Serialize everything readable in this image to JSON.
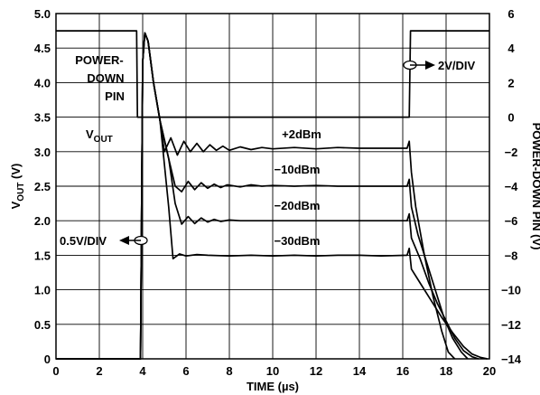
{
  "chart_data": {
    "type": "line",
    "xlabel": "TIME (µs)",
    "ylabel_left": {
      "main": "V",
      "sub": "OUT",
      "suffix": " (V)"
    },
    "ylabel_right": "POWER-DOWN PIN (V)",
    "xlim": [
      0,
      20
    ],
    "ylim_left": [
      0,
      5
    ],
    "ylim_right": [
      -14,
      6
    ],
    "x_ticks": [
      "0",
      "2",
      "4",
      "6",
      "8",
      "10",
      "12",
      "14",
      "16",
      "18",
      "20"
    ],
    "y_left_ticks": [
      "0",
      "0.5",
      "1.0",
      "1.5",
      "2.0",
      "2.5",
      "3.0",
      "3.5",
      "4.0",
      "4.5",
      "5.0"
    ],
    "y_right_ticks": [
      "−14",
      "−12",
      "−10",
      "−8",
      "−6",
      "−4",
      "−2",
      "0",
      "2",
      "4",
      "6"
    ],
    "grid": true,
    "annotations": {
      "power_down_pin": [
        "POWER-",
        "DOWN",
        "PIN"
      ],
      "vout": {
        "main": "V",
        "sub": "OUT"
      },
      "scale_right": "2V/DIV",
      "scale_left": "0.5V/DIV"
    },
    "series": [
      {
        "name": "POWER-DOWN PIN",
        "axis": "right",
        "x": [
          0,
          3.72,
          3.76,
          16.3,
          16.36,
          20
        ],
        "y": [
          5,
          5,
          0,
          0,
          5,
          5
        ]
      },
      {
        "name": "+2dBm",
        "axis": "left",
        "label": "+2dBm",
        "x": [
          0,
          3.9,
          4.0,
          4.1,
          4.25,
          4.5,
          4.8,
          5.0,
          5.3,
          5.6,
          5.9,
          6.2,
          6.5,
          6.8,
          7.1,
          7.4,
          7.7,
          8.0,
          8.5,
          9.0,
          9.5,
          10,
          11,
          12,
          13,
          14,
          15,
          16.2,
          16.3,
          16.4,
          16.6,
          17.0,
          17.4,
          17.8,
          18.1,
          18.4
        ],
        "y": [
          0,
          0,
          4.3,
          4.72,
          4.6,
          4.0,
          3.45,
          3.0,
          3.2,
          2.95,
          3.15,
          3.0,
          3.12,
          3.0,
          3.1,
          3.02,
          3.08,
          3.02,
          3.07,
          3.03,
          3.06,
          3.04,
          3.06,
          3.04,
          3.06,
          3.05,
          3.05,
          3.05,
          3.15,
          2.7,
          2.2,
          1.5,
          0.9,
          0.4,
          0.1,
          0
        ]
      },
      {
        "name": "−10dBm",
        "axis": "left",
        "label": "−10dBm",
        "x": [
          0,
          3.9,
          4.0,
          4.1,
          4.25,
          4.5,
          4.8,
          5.2,
          5.5,
          5.8,
          6.1,
          6.4,
          6.7,
          7.0,
          7.3,
          7.6,
          7.9,
          8.5,
          9.0,
          9.5,
          10,
          11,
          12,
          13,
          14,
          15,
          16.2,
          16.3,
          16.4,
          16.7,
          17.1,
          17.5,
          17.9,
          18.3,
          18.7,
          19.0
        ],
        "y": [
          0,
          0,
          4.3,
          4.72,
          4.6,
          4.0,
          3.45,
          2.9,
          2.5,
          2.42,
          2.57,
          2.45,
          2.55,
          2.47,
          2.53,
          2.48,
          2.52,
          2.49,
          2.52,
          2.5,
          2.51,
          2.5,
          2.51,
          2.5,
          2.5,
          2.5,
          2.5,
          2.6,
          2.2,
          1.8,
          1.4,
          1.0,
          0.6,
          0.3,
          0.1,
          0
        ]
      },
      {
        "name": "−20dBm",
        "axis": "left",
        "label": "−20dBm",
        "x": [
          0,
          3.9,
          4.0,
          4.1,
          4.25,
          4.5,
          4.8,
          5.2,
          5.5,
          5.8,
          6.1,
          6.4,
          6.7,
          7.0,
          7.3,
          7.6,
          8.0,
          8.5,
          9.0,
          10,
          11,
          12,
          13,
          14,
          15,
          16.2,
          16.3,
          16.4,
          16.8,
          17.2,
          17.6,
          18.0,
          18.4,
          18.8,
          19.2,
          19.5
        ],
        "y": [
          0,
          0,
          4.3,
          4.72,
          4.6,
          4.0,
          3.45,
          2.9,
          2.25,
          1.95,
          2.06,
          1.96,
          2.04,
          1.98,
          2.02,
          1.99,
          2.01,
          2.0,
          2.0,
          2.0,
          2.0,
          2.0,
          2.0,
          2.0,
          2.0,
          2.0,
          2.1,
          1.75,
          1.45,
          1.1,
          0.8,
          0.55,
          0.3,
          0.12,
          0.03,
          0
        ]
      },
      {
        "name": "−30dBm",
        "axis": "left",
        "label": "−30dBm",
        "x": [
          0,
          3.9,
          4.0,
          4.1,
          4.25,
          4.5,
          4.8,
          5.2,
          5.4,
          5.7,
          6.0,
          6.5,
          7.0,
          8.0,
          9.0,
          10,
          11,
          12,
          13,
          14,
          15,
          16.2,
          16.3,
          16.4,
          16.8,
          17.3,
          17.8,
          18.3,
          18.8,
          19.2,
          19.6,
          19.9
        ],
        "y": [
          0,
          0,
          4.3,
          4.72,
          4.6,
          4.0,
          3.45,
          2.2,
          1.45,
          1.52,
          1.49,
          1.51,
          1.5,
          1.49,
          1.5,
          1.49,
          1.5,
          1.49,
          1.5,
          1.5,
          1.49,
          1.5,
          1.6,
          1.3,
          1.1,
          0.85,
          0.6,
          0.38,
          0.18,
          0.07,
          0.02,
          0
        ]
      }
    ]
  }
}
